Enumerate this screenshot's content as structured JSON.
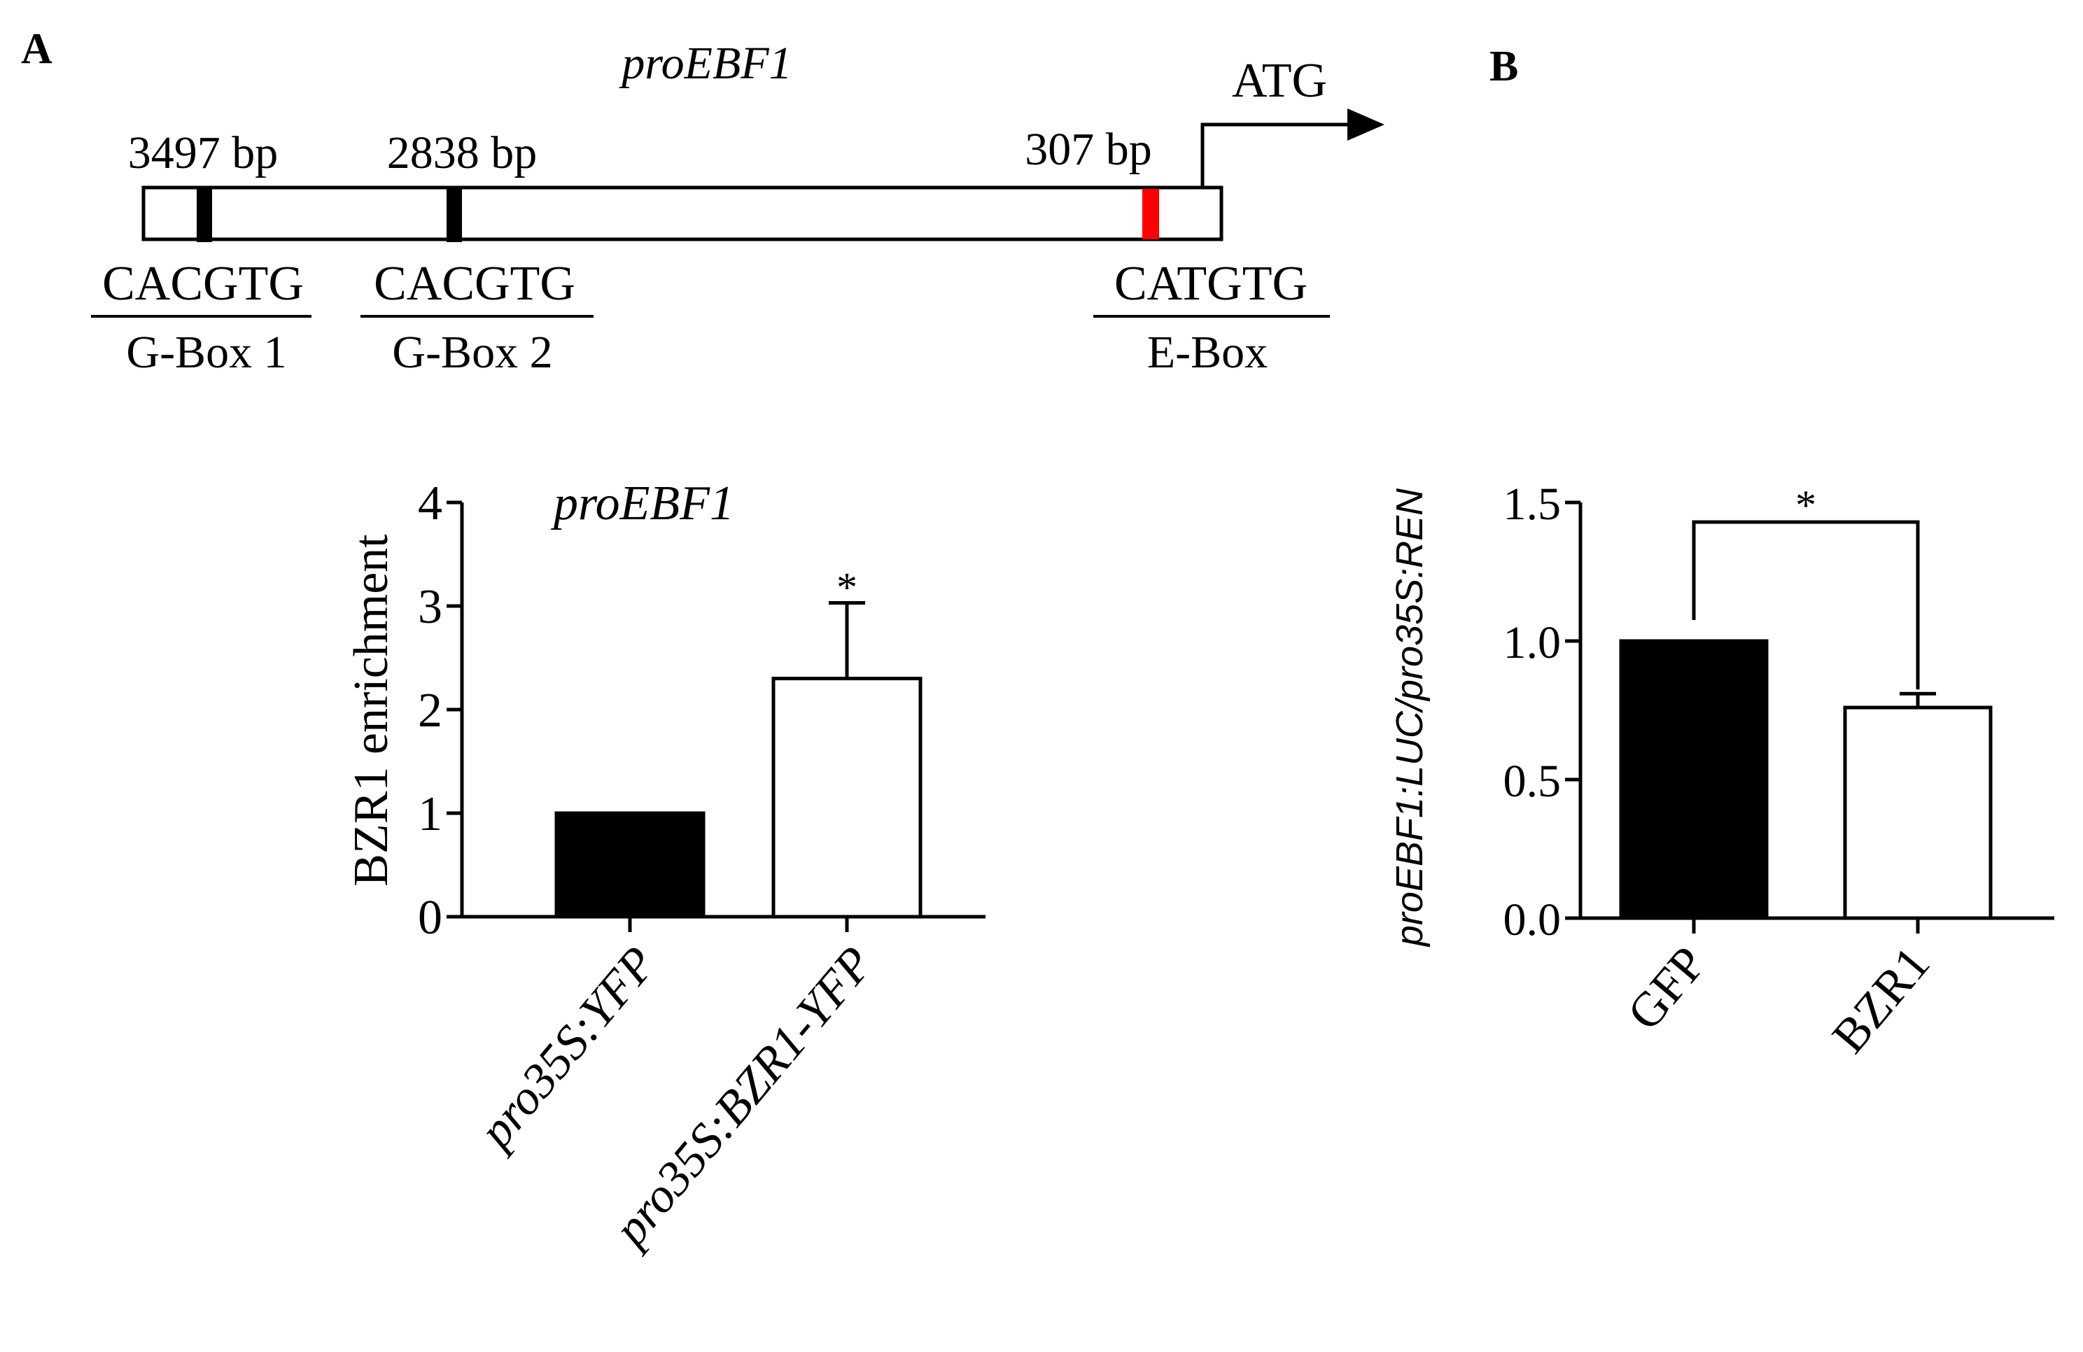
{
  "panels": {
    "a_label": "A",
    "b_label": "B"
  },
  "promoter_diagram": {
    "title": "proEBF1",
    "start_codon": "ATG",
    "sites": [
      {
        "position": "3497 bp",
        "sequence": "CACGTG",
        "name": "G-Box 1",
        "color": "#000000"
      },
      {
        "position": "2838 bp",
        "sequence": "CACGTG",
        "name": "G-Box 2",
        "color": "#000000"
      },
      {
        "position": "307 bp",
        "sequence": "CATGTG",
        "name": "E-Box",
        "color": "#ff0000"
      }
    ]
  },
  "chart_data": [
    {
      "type": "bar",
      "title": "proEBF1",
      "ylabel": "BZR1 enrichment",
      "xlabel": "",
      "categories": [
        "pro35S:YFP",
        "pro35S:BZR1-YFP"
      ],
      "values": [
        1.0,
        2.3
      ],
      "errors": [
        0,
        0.73
      ],
      "fills": [
        "#000000",
        "#ffffff"
      ],
      "ylim": [
        0,
        4
      ],
      "yticks": [
        "0",
        "1",
        "2",
        "3",
        "4"
      ],
      "significance": {
        "category": "pro35S:BZR1-YFP",
        "marker": "*"
      },
      "grid": false
    },
    {
      "type": "bar",
      "title": "",
      "ylabel": "proEBF1:LUC/pro35S:REN",
      "xlabel": "",
      "categories": [
        "GFP",
        "BZR1"
      ],
      "values": [
        1.0,
        0.76
      ],
      "errors": [
        0,
        0.05
      ],
      "fills": [
        "#000000",
        "#ffffff"
      ],
      "ylim": [
        0,
        1.5
      ],
      "yticks": [
        "0.0",
        "0.5",
        "1.0",
        "1.5"
      ],
      "significance": {
        "between": [
          "GFP",
          "BZR1"
        ],
        "marker": "*"
      },
      "grid": false
    }
  ]
}
